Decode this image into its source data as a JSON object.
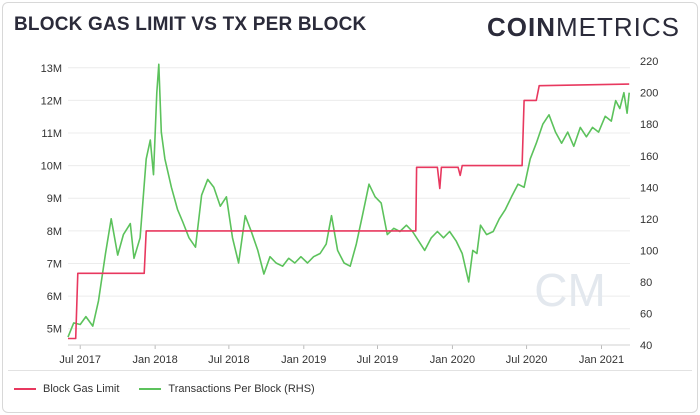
{
  "header": {
    "title": "BLOCK GAS LIMIT VS TX PER BLOCK",
    "brand_bold": "COIN",
    "brand_light": "METRICS",
    "watermark": "CM"
  },
  "colors": {
    "gas": "#e8385f",
    "tx": "#5cc25c",
    "grid": "#ececec",
    "watermark": "#e3e8ee"
  },
  "chart_data": {
    "type": "line",
    "x_ticks": [
      "Jul 2017",
      "Jan 2018",
      "Jul 2018",
      "Jan 2019",
      "Jul 2019",
      "Jan 2020",
      "Jul 2020",
      "Jan 2021"
    ],
    "y_left_ticks": [
      "5M",
      "6M",
      "7M",
      "8M",
      "9M",
      "10M",
      "11M",
      "12M",
      "13M"
    ],
    "y_right_ticks": [
      "40",
      "60",
      "80",
      "100",
      "120",
      "140",
      "160",
      "180",
      "200",
      "220"
    ],
    "y_left_range": [
      4.5,
      13.3
    ],
    "y_right_range": [
      40,
      222
    ],
    "legend_position": "bottom-left",
    "series": [
      {
        "name": "Block Gas Limit",
        "axis": "left",
        "color": "#e8385f",
        "points": [
          [
            "2017-06-01",
            4.7
          ],
          [
            "2017-06-20",
            4.7
          ],
          [
            "2017-06-25",
            6.7
          ],
          [
            "2017-07-15",
            6.7
          ],
          [
            "2017-12-05",
            6.7
          ],
          [
            "2017-12-10",
            8.0
          ],
          [
            "2019-09-20",
            8.0
          ],
          [
            "2019-10-03",
            8.0
          ],
          [
            "2019-10-05",
            9.95
          ],
          [
            "2019-11-25",
            9.95
          ],
          [
            "2019-12-01",
            9.3
          ],
          [
            "2019-12-05",
            9.95
          ],
          [
            "2020-01-15",
            9.95
          ],
          [
            "2020-01-20",
            9.7
          ],
          [
            "2020-01-25",
            10.0
          ],
          [
            "2020-06-20",
            10.0
          ],
          [
            "2020-06-25",
            12.0
          ],
          [
            "2020-07-25",
            12.0
          ],
          [
            "2020-08-01",
            12.45
          ],
          [
            "2021-03-10",
            12.5
          ]
        ]
      },
      {
        "name": "Transactions Per Block (RHS)",
        "axis": "right",
        "color": "#5cc25c",
        "points": [
          [
            "2017-06-01",
            45
          ],
          [
            "2017-06-15",
            54
          ],
          [
            "2017-07-01",
            53
          ],
          [
            "2017-07-15",
            58
          ],
          [
            "2017-08-01",
            52
          ],
          [
            "2017-08-15",
            68
          ],
          [
            "2017-09-01",
            98
          ],
          [
            "2017-09-15",
            120
          ],
          [
            "2017-10-01",
            97
          ],
          [
            "2017-10-15",
            110
          ],
          [
            "2017-11-01",
            117
          ],
          [
            "2017-11-10",
            95
          ],
          [
            "2017-11-25",
            108
          ],
          [
            "2017-12-10",
            158
          ],
          [
            "2017-12-20",
            170
          ],
          [
            "2017-12-28",
            148
          ],
          [
            "2018-01-05",
            200
          ],
          [
            "2018-01-10",
            218
          ],
          [
            "2018-01-16",
            175
          ],
          [
            "2018-01-25",
            158
          ],
          [
            "2018-02-10",
            140
          ],
          [
            "2018-02-25",
            126
          ],
          [
            "2018-03-10",
            118
          ],
          [
            "2018-03-25",
            108
          ],
          [
            "2018-04-10",
            102
          ],
          [
            "2018-04-25",
            135
          ],
          [
            "2018-05-10",
            145
          ],
          [
            "2018-05-25",
            140
          ],
          [
            "2018-06-10",
            128
          ],
          [
            "2018-06-25",
            134
          ],
          [
            "2018-07-10",
            108
          ],
          [
            "2018-07-25",
            92
          ],
          [
            "2018-08-10",
            122
          ],
          [
            "2018-08-25",
            112
          ],
          [
            "2018-09-10",
            100
          ],
          [
            "2018-09-25",
            85
          ],
          [
            "2018-10-10",
            96
          ],
          [
            "2018-10-25",
            92
          ],
          [
            "2018-11-10",
            90
          ],
          [
            "2018-11-25",
            95
          ],
          [
            "2018-12-10",
            92
          ],
          [
            "2018-12-25",
            96
          ],
          [
            "2019-01-10",
            92
          ],
          [
            "2019-01-25",
            96
          ],
          [
            "2019-02-10",
            98
          ],
          [
            "2019-02-25",
            104
          ],
          [
            "2019-03-10",
            122
          ],
          [
            "2019-03-25",
            100
          ],
          [
            "2019-04-10",
            92
          ],
          [
            "2019-04-25",
            90
          ],
          [
            "2019-05-10",
            104
          ],
          [
            "2019-05-25",
            122
          ],
          [
            "2019-06-10",
            142
          ],
          [
            "2019-06-25",
            134
          ],
          [
            "2019-07-10",
            130
          ],
          [
            "2019-07-25",
            110
          ],
          [
            "2019-08-10",
            114
          ],
          [
            "2019-08-25",
            112
          ],
          [
            "2019-09-10",
            116
          ],
          [
            "2019-09-25",
            112
          ],
          [
            "2019-10-10",
            106
          ],
          [
            "2019-10-25",
            100
          ],
          [
            "2019-11-10",
            108
          ],
          [
            "2019-11-25",
            112
          ],
          [
            "2019-12-10",
            108
          ],
          [
            "2019-12-25",
            112
          ],
          [
            "2020-01-10",
            106
          ],
          [
            "2020-01-25",
            98
          ],
          [
            "2020-02-10",
            80
          ],
          [
            "2020-02-20",
            100
          ],
          [
            "2020-03-01",
            98
          ],
          [
            "2020-03-10",
            116
          ],
          [
            "2020-03-25",
            110
          ],
          [
            "2020-04-10",
            112
          ],
          [
            "2020-04-25",
            120
          ],
          [
            "2020-05-10",
            126
          ],
          [
            "2020-05-25",
            134
          ],
          [
            "2020-06-10",
            142
          ],
          [
            "2020-06-25",
            140
          ],
          [
            "2020-07-10",
            158
          ],
          [
            "2020-07-25",
            168
          ],
          [
            "2020-08-10",
            180
          ],
          [
            "2020-08-25",
            186
          ],
          [
            "2020-09-10",
            175
          ],
          [
            "2020-09-25",
            168
          ],
          [
            "2020-10-10",
            175
          ],
          [
            "2020-10-25",
            166
          ],
          [
            "2020-11-10",
            178
          ],
          [
            "2020-11-25",
            172
          ],
          [
            "2020-12-10",
            178
          ],
          [
            "2020-12-25",
            175
          ],
          [
            "2021-01-10",
            185
          ],
          [
            "2021-01-25",
            182
          ],
          [
            "2021-02-05",
            195
          ],
          [
            "2021-02-15",
            190
          ],
          [
            "2021-02-25",
            200
          ],
          [
            "2021-03-05",
            187
          ],
          [
            "2021-03-10",
            200
          ]
        ]
      }
    ]
  }
}
